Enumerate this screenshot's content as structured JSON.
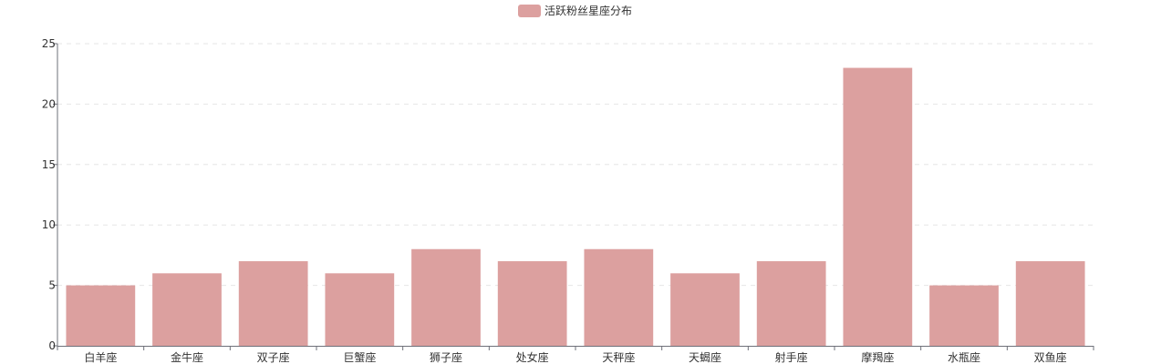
{
  "chart_data": {
    "type": "bar",
    "legend": {
      "position": "top-center",
      "items": [
        {
          "label": "活跃粉丝星座分布",
          "color": "#dca09f"
        }
      ]
    },
    "categories": [
      "白羊座",
      "金牛座",
      "双子座",
      "巨蟹座",
      "狮子座",
      "处女座",
      "天秤座",
      "天蝎座",
      "射手座",
      "摩羯座",
      "水瓶座",
      "双鱼座"
    ],
    "series": [
      {
        "name": "活跃粉丝星座分布",
        "values": [
          5,
          6,
          7,
          6,
          8,
          7,
          8,
          6,
          7,
          23,
          5,
          7
        ],
        "color": "#dca09f"
      }
    ],
    "yaxis": {
      "min": 0,
      "max": 25,
      "ticks": [
        0,
        5,
        10,
        15,
        20,
        25
      ]
    },
    "grid": {
      "horizontal": true,
      "style": "dashed",
      "color": "#e6e6e6"
    },
    "axis_color": "#6e7079"
  }
}
